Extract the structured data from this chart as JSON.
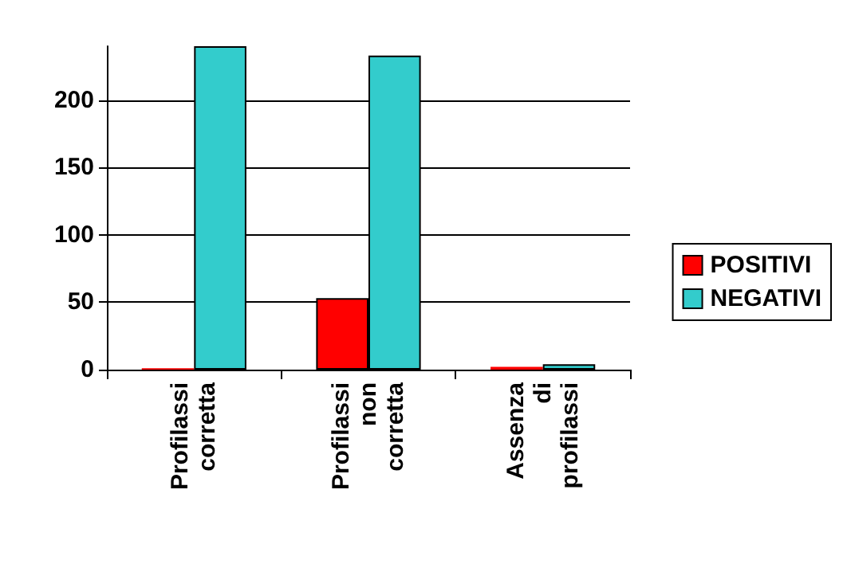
{
  "chart_data": {
    "type": "bar",
    "categories": [
      "Profilassi corretta",
      "Profilassi non corretta",
      "Assenza di profilassi"
    ],
    "series": [
      {
        "name": "POSITIVI",
        "color": "#ff0000",
        "values": [
          1,
          53,
          2
        ]
      },
      {
        "name": "NEGATIVI",
        "color": "#33cccc",
        "values": [
          240,
          233,
          4
        ]
      }
    ],
    "ylim": [
      0,
      240
    ],
    "yticks": [
      0,
      50,
      100,
      150,
      200
    ],
    "grid": "y",
    "legend": "right"
  }
}
